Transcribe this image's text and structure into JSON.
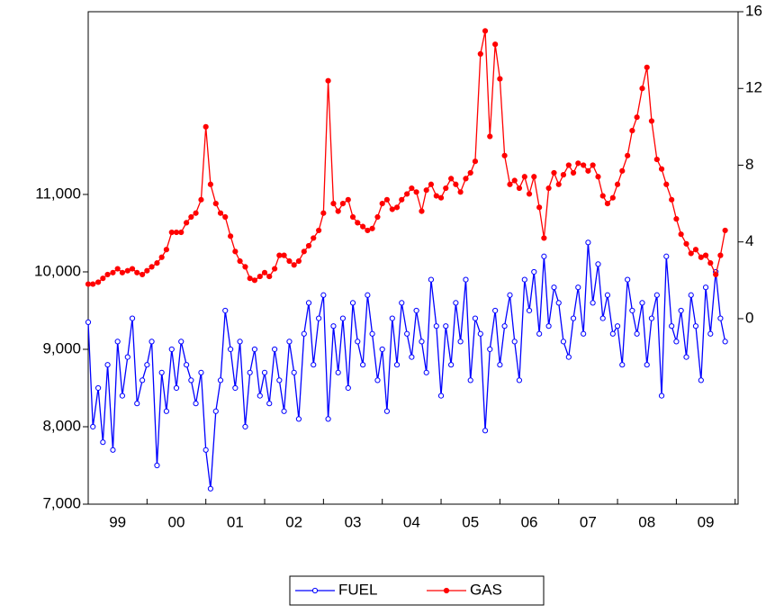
{
  "chart_data": {
    "type": "line",
    "x": [
      1999,
      1999.08,
      1999.17,
      1999.25,
      1999.33,
      1999.42,
      1999.5,
      1999.58,
      1999.67,
      1999.75,
      1999.83,
      1999.92,
      2000,
      2000.08,
      2000.17,
      2000.25,
      2000.33,
      2000.42,
      2000.5,
      2000.58,
      2000.67,
      2000.75,
      2000.83,
      2000.92,
      2001,
      2001.08,
      2001.17,
      2001.25,
      2001.33,
      2001.42,
      2001.5,
      2001.58,
      2001.67,
      2001.75,
      2001.83,
      2001.92,
      2002,
      2002.08,
      2002.17,
      2002.25,
      2002.33,
      2002.42,
      2002.5,
      2002.58,
      2002.67,
      2002.75,
      2002.83,
      2002.92,
      2003,
      2003.08,
      2003.17,
      2003.25,
      2003.33,
      2003.42,
      2003.5,
      2003.58,
      2003.67,
      2003.75,
      2003.83,
      2003.92,
      2004,
      2004.08,
      2004.17,
      2004.25,
      2004.33,
      2004.42,
      2004.5,
      2004.58,
      2004.67,
      2004.75,
      2004.83,
      2004.92,
      2005,
      2005.08,
      2005.17,
      2005.25,
      2005.33,
      2005.42,
      2005.5,
      2005.58,
      2005.67,
      2005.75,
      2005.83,
      2005.92,
      2006,
      2006.08,
      2006.17,
      2006.25,
      2006.33,
      2006.42,
      2006.5,
      2006.58,
      2006.67,
      2006.75,
      2006.83,
      2006.92,
      2007,
      2007.08,
      2007.17,
      2007.25,
      2007.33,
      2007.42,
      2007.5,
      2007.58,
      2007.67,
      2007.75,
      2007.83,
      2007.92,
      2008,
      2008.08,
      2008.17,
      2008.25,
      2008.33,
      2008.42,
      2008.5,
      2008.58,
      2008.67,
      2008.75,
      2008.83,
      2008.92,
      2009,
      2009.08,
      2009.17,
      2009.25,
      2009.33,
      2009.42,
      2009.5,
      2009.58,
      2009.67,
      2009.75,
      2009.83
    ],
    "series": [
      {
        "name": "FUEL",
        "color": "#0000ff",
        "marker": "hollow",
        "values": [
          9350,
          8000,
          8500,
          7800,
          8800,
          7700,
          9100,
          8400,
          8900,
          9400,
          8300,
          8600,
          8800,
          9100,
          7500,
          8700,
          8200,
          9000,
          8500,
          9100,
          8800,
          8600,
          8300,
          8700,
          7700,
          7200,
          8200,
          8600,
          9500,
          9000,
          8500,
          9100,
          8000,
          8700,
          9000,
          8400,
          8700,
          8300,
          9000,
          8600,
          8200,
          9100,
          8700,
          8100,
          9200,
          9600,
          8800,
          9400,
          9700,
          8100,
          9300,
          8700,
          9400,
          8500,
          9600,
          9100,
          8800,
          9700,
          9200,
          8600,
          9000,
          8200,
          9400,
          8800,
          9600,
          9200,
          8900,
          9500,
          9100,
          8700,
          9900,
          9300,
          8400,
          9300,
          8800,
          9600,
          9100,
          9900,
          8600,
          9400,
          9200,
          7950,
          9000,
          9500,
          8800,
          9300,
          9700,
          9100,
          8600,
          9900,
          9500,
          10000,
          9200,
          10200,
          9300,
          9800,
          9600,
          9100,
          8900,
          9400,
          9800,
          9200,
          10380,
          9600,
          10100,
          9400,
          9700,
          9200,
          9300,
          8800,
          9900,
          9500,
          9200,
          9600,
          8800,
          9400,
          9700,
          8400,
          10200,
          9300,
          9100,
          9500,
          8900,
          9700,
          9300,
          8600,
          9800,
          9200,
          10000,
          9400,
          9100
        ]
      },
      {
        "name": "GAS",
        "color": "#ff0000",
        "marker": "filled",
        "axis": "y2",
        "values": [
          1.8,
          1.8,
          1.9,
          2.1,
          2.3,
          2.4,
          2.6,
          2.4,
          2.5,
          2.6,
          2.4,
          2.3,
          2.5,
          2.7,
          2.9,
          3.2,
          3.6,
          4.5,
          4.5,
          4.5,
          5.0,
          5.3,
          5.5,
          6.2,
          10.0,
          7.0,
          6.0,
          5.5,
          5.3,
          4.3,
          3.5,
          3.0,
          2.7,
          2.1,
          2.0,
          2.2,
          2.4,
          2.2,
          2.6,
          3.3,
          3.3,
          3.0,
          2.8,
          3.0,
          3.5,
          3.8,
          4.2,
          4.6,
          5.5,
          12.4,
          6.0,
          5.6,
          6.0,
          6.2,
          5.3,
          5.0,
          4.8,
          4.6,
          4.7,
          5.3,
          6.0,
          6.2,
          5.7,
          5.8,
          6.2,
          6.5,
          6.8,
          6.6,
          5.6,
          6.7,
          7.0,
          6.4,
          6.3,
          6.8,
          7.3,
          7.0,
          6.6,
          7.3,
          7.6,
          8.2,
          13.8,
          15.0,
          9.5,
          14.3,
          12.5,
          8.5,
          7.0,
          7.2,
          6.8,
          7.4,
          6.5,
          7.4,
          5.8,
          4.2,
          6.8,
          7.6,
          7.0,
          7.5,
          8.0,
          7.6,
          8.1,
          8.0,
          7.7,
          8.0,
          7.4,
          6.4,
          6.0,
          6.3,
          7.0,
          7.7,
          8.5,
          9.8,
          10.5,
          12.0,
          13.1,
          10.3,
          8.3,
          7.8,
          7.0,
          6.2,
          5.2,
          4.4,
          3.9,
          3.4,
          3.6,
          3.2,
          3.3,
          2.9,
          2.3,
          3.3,
          4.6
        ]
      }
    ],
    "xlim": [
      1999,
      2010.05
    ],
    "xticks": [
      {
        "value": 1999.5,
        "label": "99"
      },
      {
        "value": 2000.5,
        "label": "00"
      },
      {
        "value": 2001.5,
        "label": "01"
      },
      {
        "value": 2002.5,
        "label": "02"
      },
      {
        "value": 2003.5,
        "label": "03"
      },
      {
        "value": 2004.5,
        "label": "04"
      },
      {
        "value": 2005.5,
        "label": "05"
      },
      {
        "value": 2006.5,
        "label": "06"
      },
      {
        "value": 2007.5,
        "label": "07"
      },
      {
        "value": 2008.5,
        "label": "08"
      },
      {
        "value": 2009.5,
        "label": "09"
      }
    ],
    "ylim": [
      7000,
      13360
    ],
    "yticks": [
      {
        "value": 7000,
        "label": "7,000"
      },
      {
        "value": 8000,
        "label": "8,000"
      },
      {
        "value": 9000,
        "label": "9,000"
      },
      {
        "value": 10000,
        "label": "10,000"
      },
      {
        "value": 11000,
        "label": "11,000"
      }
    ],
    "y2lim": [
      -9.67,
      16
    ],
    "y2ticks": [
      0,
      4,
      8,
      12,
      16
    ],
    "grid": false,
    "legend": "bottom"
  }
}
